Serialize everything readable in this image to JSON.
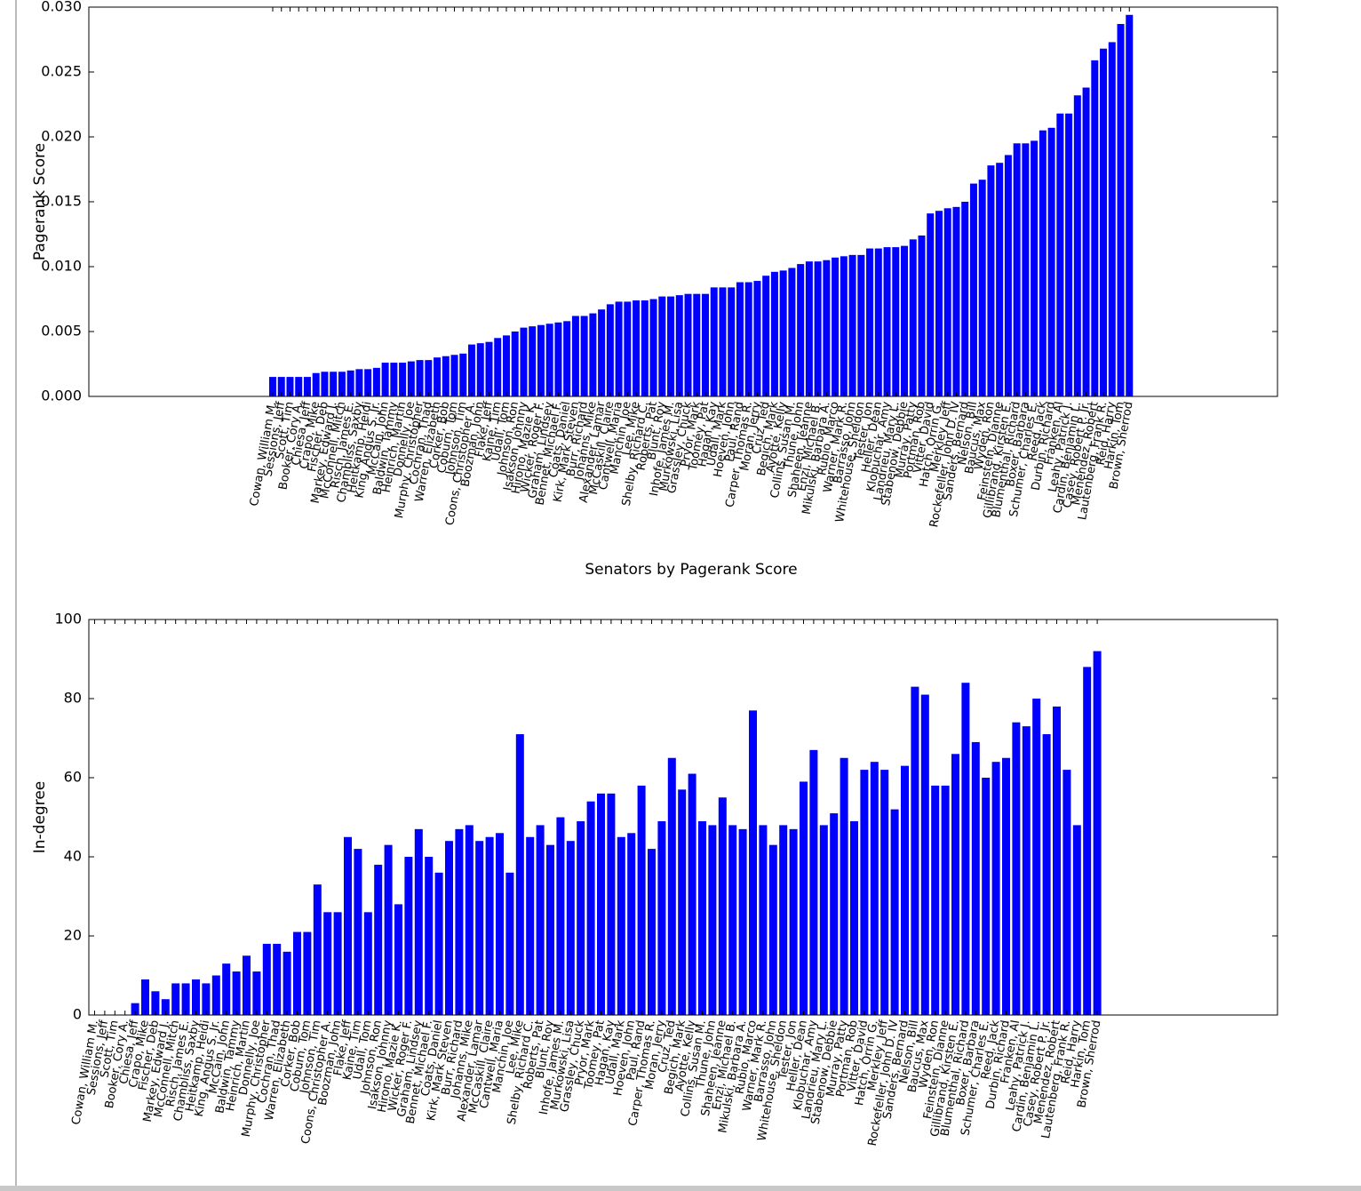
{
  "chart_data": [
    {
      "type": "bar",
      "ylabel": "Pagerank Score",
      "xlabel": "Senators by Pagerank Score",
      "color": "#0000ff",
      "ylim": [
        0,
        0.03
      ],
      "yticks": [
        {
          "value": 0,
          "label": "0.000"
        },
        {
          "value": 0.005,
          "label": "0.005"
        },
        {
          "value": 0.01,
          "label": "0.010"
        },
        {
          "value": 0.015,
          "label": "0.015"
        },
        {
          "value": 0.02,
          "label": "0.020"
        },
        {
          "value": 0.025,
          "label": "0.025"
        },
        {
          "value": 0.03,
          "label": "0.030"
        }
      ],
      "categories": [
        "Cowan, William M.",
        "Sessions, Jeff",
        "Scott, Tim",
        "Booker, Cory A.",
        "Chiesa, Jeff",
        "Crapo, Mike",
        "Fischer, Deb",
        "Markey, Edward J.",
        "McConnell, Mitch",
        "Risch, James E.",
        "Chambliss, Saxby",
        "Heitkamp, Heidi",
        "King, Angus S. Jr.",
        "McCain, John",
        "Baldwin, Tammy",
        "Heinrich, Martin",
        "Donnelly, Joe",
        "Murphy, Christopher",
        "Cochran, Thad",
        "Warren, Elizabeth",
        "Corker, Bob",
        "Coburn, Tom",
        "Johnson, Tim",
        "Coons, Christopher A.",
        "Boozman, John",
        "Flake, Jeff",
        "Kaine, Tim",
        "Udall, Tom",
        "Johnson, Ron",
        "Isakson, Johnny",
        "Hirono, Mazie K.",
        "Wicker, Roger F.",
        "Graham, Lindsey",
        "Bennet, Michael F.",
        "Coats, Daniel",
        "Kirk, Mark Steven",
        "Burr, Richard",
        "Johanns, Mike",
        "Alexander, Lamar",
        "McCaskill, Claire",
        "Cantwell, Maria",
        "Manchin, Joe",
        "Lee, Mike",
        "Shelby, Richard C.",
        "Roberts, Pat",
        "Blunt, Roy",
        "Inhofe, James M.",
        "Murkowski, Lisa",
        "Grassley, Chuck",
        "Pryor, Mark",
        "Toomey, Pat",
        "Hagan, Kay",
        "Udall, Mark",
        "Hoeven, John",
        "Paul, Rand",
        "Carper, Thomas R.",
        "Moran, Jerry",
        "Cruz, Ted",
        "Begich, Mark",
        "Ayotte, Kelly",
        "Collins, Susan M.",
        "Thune, John",
        "Shaheen, Jeanne",
        "Enzi, Michael B.",
        "Mikulski, Barbara A.",
        "Rubio, Marco",
        "Warner, Mark R.",
        "Barrasso, John",
        "Whitehouse, Sheldon",
        "Tester, Jon",
        "Heller, Dean",
        "Klobuchar, Amy",
        "Landrieu, Mary L.",
        "Stabenow, Debbie",
        "Murray, Patty",
        "Portman, Rob",
        "Vitter, David",
        "Hatch, Orrin G.",
        "Merkley, Jeff",
        "Rockefeller, John D. IV",
        "Sanders, Bernard",
        "Nelson, Bill",
        "Baucus, Max",
        "Wyden, Ron",
        "Feinstein, Dianne",
        "Gillibrand, Kirsten E.",
        "Blumenthal, Richard",
        "Boxer, Barbara",
        "Schumer, Charles E.",
        "Reed, Jack",
        "Durbin, Richard",
        "Franken, Al",
        "Leahy, Patrick J.",
        "Cardin, Benjamin L.",
        "Casey, Robert P. Jr.",
        "Menendez, Robert",
        "Lautenberg, Frank R.",
        "Reid, Harry",
        "Harkin, Tom",
        "Brown, Sherrod"
      ],
      "values": [
        0.0015,
        0.0015,
        0.0015,
        0.0015,
        0.0015,
        0.0018,
        0.0019,
        0.0019,
        0.0019,
        0.002,
        0.0021,
        0.0021,
        0.0022,
        0.0026,
        0.0026,
        0.0026,
        0.0027,
        0.0028,
        0.0028,
        0.003,
        0.0031,
        0.0032,
        0.0033,
        0.004,
        0.0041,
        0.0042,
        0.0045,
        0.0047,
        0.005,
        0.0053,
        0.0054,
        0.0055,
        0.0056,
        0.0057,
        0.0058,
        0.0062,
        0.0062,
        0.0064,
        0.0067,
        0.0071,
        0.0073,
        0.0073,
        0.0074,
        0.0074,
        0.0075,
        0.0077,
        0.0077,
        0.0078,
        0.0079,
        0.0079,
        0.0079,
        0.0084,
        0.0084,
        0.0084,
        0.0088,
        0.0088,
        0.0089,
        0.0093,
        0.0096,
        0.0097,
        0.0099,
        0.0102,
        0.0104,
        0.0104,
        0.0105,
        0.0107,
        0.0108,
        0.0109,
        0.0109,
        0.0114,
        0.0114,
        0.0115,
        0.0115,
        0.0116,
        0.0121,
        0.0124,
        0.0141,
        0.0143,
        0.0145,
        0.0146,
        0.015,
        0.0164,
        0.0167,
        0.0178,
        0.018,
        0.0186,
        0.0195,
        0.0195,
        0.0197,
        0.0205,
        0.0207,
        0.0218,
        0.0218,
        0.0232,
        0.0238,
        0.0259,
        0.0268,
        0.0273,
        0.0287,
        0.0294
      ]
    },
    {
      "type": "bar",
      "ylabel": "In-degree",
      "color": "#0000ff",
      "ylim": [
        0,
        100
      ],
      "yticks": [
        0,
        20,
        40,
        60,
        80,
        100
      ],
      "categories": [
        "Cowan, William M.",
        "Sessions, Jeff",
        "Scott, Tim",
        "Booker, Cory A.",
        "Chiesa, Jeff",
        "Crapo, Mike",
        "Fischer, Deb",
        "Markey, Edward J.",
        "McConnell, Mitch",
        "Risch, James E.",
        "Chambliss, Saxby",
        "Heitkamp, Heidi",
        "King, Angus S. Jr.",
        "McCain, John",
        "Baldwin, Tammy",
        "Heinrich, Martin",
        "Donnelly, Joe",
        "Murphy, Christopher",
        "Cochran, Thad",
        "Warren, Elizabeth",
        "Corker, Bob",
        "Coburn, Tom",
        "Johnson, Tim",
        "Coons, Christopher A.",
        "Boozman, John",
        "Flake, Jeff",
        "Kaine, Tim",
        "Udall, Tom",
        "Johnson, Ron",
        "Isakson, Johnny",
        "Hirono, Mazie K.",
        "Wicker, Roger F.",
        "Graham, Lindsey",
        "Bennet, Michael F.",
        "Coats, Daniel",
        "Kirk, Mark Steven",
        "Burr, Richard",
        "Johanns, Mike",
        "Alexander, Lamar",
        "McCaskill, Claire",
        "Cantwell, Maria",
        "Manchin, Joe",
        "Lee, Mike",
        "Shelby, Richard C.",
        "Roberts, Pat",
        "Blunt, Roy",
        "Inhofe, James M.",
        "Murkowski, Lisa",
        "Grassley, Chuck",
        "Pryor, Mark",
        "Toomey, Pat",
        "Hagan, Kay",
        "Udall, Mark",
        "Hoeven, John",
        "Paul, Rand",
        "Carper, Thomas R.",
        "Moran, Jerry",
        "Cruz, Ted",
        "Begich, Mark",
        "Ayotte, Kelly",
        "Collins, Susan M.",
        "Thune, John",
        "Shaheen, Jeanne",
        "Enzi, Michael B.",
        "Mikulski, Barbara A.",
        "Rubio, Marco",
        "Warner, Mark R.",
        "Barrasso, John",
        "Whitehouse, Sheldon",
        "Tester, Jon",
        "Heller, Dean",
        "Klobuchar, Amy",
        "Landrieu, Mary L.",
        "Stabenow, Debbie",
        "Murray, Patty",
        "Portman, Rob",
        "Vitter, David",
        "Hatch, Orrin G.",
        "Merkley, Jeff",
        "Rockefeller, John D. IV",
        "Sanders, Bernard",
        "Nelson, Bill",
        "Baucus, Max",
        "Wyden, Ron",
        "Feinstein, Dianne",
        "Gillibrand, Kirsten E.",
        "Blumenthal, Richard",
        "Boxer, Barbara",
        "Schumer, Charles E.",
        "Reed, Jack",
        "Durbin, Richard",
        "Franken, Al",
        "Leahy, Patrick J.",
        "Cardin, Benjamin L.",
        "Casey, Robert P. Jr.",
        "Menendez, Robert",
        "Lautenberg, Frank R.",
        "Reid, Harry",
        "Harkin, Tom",
        "Brown, Sherrod"
      ],
      "values": [
        0,
        0,
        0,
        0,
        3,
        9,
        6,
        4,
        8,
        8,
        9,
        8,
        10,
        13,
        11,
        15,
        11,
        18,
        18,
        16,
        21,
        21,
        33,
        26,
        26,
        45,
        42,
        26,
        38,
        43,
        28,
        40,
        47,
        40,
        36,
        44,
        47,
        48,
        44,
        45,
        46,
        36,
        71,
        45,
        48,
        43,
        50,
        44,
        49,
        54,
        56,
        56,
        45,
        46,
        58,
        42,
        49,
        65,
        57,
        61,
        49,
        48,
        55,
        48,
        47,
        77,
        48,
        43,
        48,
        47,
        59,
        67,
        48,
        51,
        65,
        49,
        62,
        64,
        62,
        52,
        63,
        83,
        81,
        58,
        58,
        66,
        84,
        69,
        60,
        64,
        65,
        74,
        73,
        80,
        71,
        78,
        62,
        48,
        88,
        92
      ]
    }
  ]
}
